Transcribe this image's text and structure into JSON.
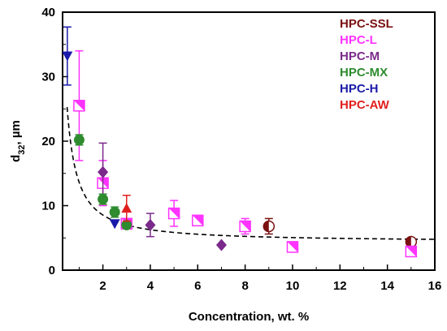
{
  "chart_data": {
    "type": "scatter",
    "xlabel": "Concentration, wt. %",
    "ylabel_main": "d",
    "ylabel_sub": "32",
    "ylabel_unit": ", µm",
    "xlim": [
      0.3,
      16
    ],
    "ylim": [
      0,
      40
    ],
    "xticks": [
      2,
      4,
      6,
      8,
      10,
      12,
      14,
      16
    ],
    "yticks": [
      0,
      10,
      20,
      30,
      40
    ],
    "legend_position": "top-right",
    "grid": false,
    "series": [
      {
        "name": "HPC-SSL",
        "color": "#7B1010",
        "marker": "circle-half",
        "points": [
          {
            "x": 9,
            "y": 6.8,
            "err": 1.2
          },
          {
            "x": 15,
            "y": 4.4,
            "err": 0
          }
        ]
      },
      {
        "name": "HPC-L",
        "color": "#FF33FF",
        "marker": "square-half",
        "points": [
          {
            "x": 1,
            "y": 25.5,
            "err": 8.5
          },
          {
            "x": 2,
            "y": 13.5,
            "err": 3.5
          },
          {
            "x": 3,
            "y": 7.2,
            "err": 0
          },
          {
            "x": 5,
            "y": 8.8,
            "err": 2.0
          },
          {
            "x": 6,
            "y": 7.7,
            "err": 0
          },
          {
            "x": 8,
            "y": 6.8,
            "err": 1.2
          },
          {
            "x": 10,
            "y": 3.6,
            "err": 0
          },
          {
            "x": 15,
            "y": 2.9,
            "err": 0
          }
        ]
      },
      {
        "name": "HPC-M",
        "color": "#7A2A8A",
        "marker": "diamond",
        "points": [
          {
            "x": 2,
            "y": 15.2,
            "err": 4.5
          },
          {
            "x": 4,
            "y": 7.0,
            "err": 1.8
          },
          {
            "x": 7,
            "y": 3.9,
            "err": 0
          }
        ]
      },
      {
        "name": "HPC-MX",
        "color": "#2E8B2E",
        "marker": "circle",
        "points": [
          {
            "x": 1,
            "y": 20.2,
            "err": 0.8
          },
          {
            "x": 2,
            "y": 11.0,
            "err": 0.8
          },
          {
            "x": 2.5,
            "y": 9.0,
            "err": 0.8
          },
          {
            "x": 3,
            "y": 7.0,
            "err": 0
          }
        ]
      },
      {
        "name": "HPC-H",
        "color": "#1A1AAA",
        "marker": "triangle-down",
        "points": [
          {
            "x": 0.5,
            "y": 33.2,
            "err": 4.5
          },
          {
            "x": 2.5,
            "y": 7.2,
            "err": 0
          }
        ]
      },
      {
        "name": "HPC-AW",
        "color": "#E0201F",
        "marker": "triangle-up",
        "points": [
          {
            "x": 3,
            "y": 9.6,
            "err": 2.0
          }
        ]
      }
    ],
    "fit_curve": {
      "style": "dashed",
      "color": "#000000",
      "x": [
        0.5,
        16
      ],
      "formula_note": ""
    }
  }
}
